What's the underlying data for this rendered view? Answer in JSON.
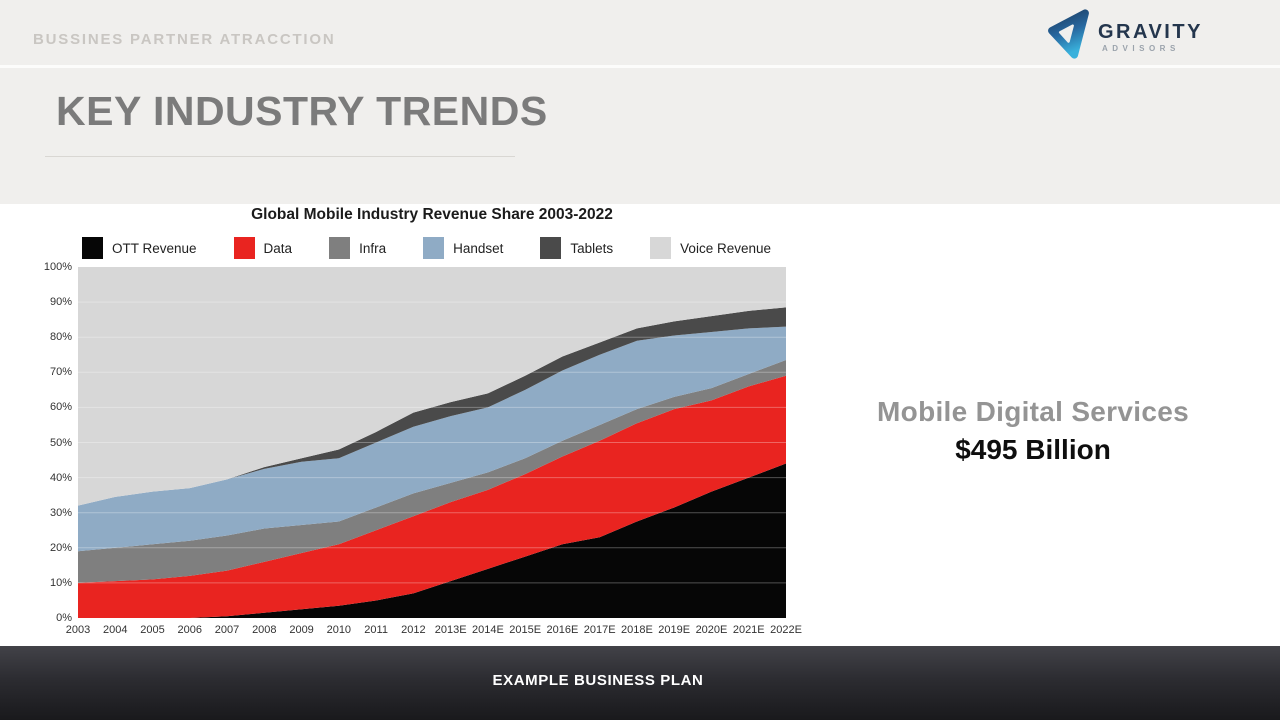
{
  "header": {
    "label": "BUSSINES PARTNER ATRACCTION"
  },
  "logo": {
    "name": "GRAVITY",
    "sub": "ADVISORS",
    "navy": "#24364d",
    "cyan": "#39b1dc"
  },
  "page": {
    "title": "KEY INDUSTRY TRENDS"
  },
  "chart_data": {
    "type": "area",
    "stacked": true,
    "title": "Global Mobile Industry Revenue Share 2003-2022",
    "categories": [
      "2003",
      "2004",
      "2005",
      "2006",
      "2007",
      "2008",
      "2009",
      "2010",
      "2011",
      "2012",
      "2013E",
      "2014E",
      "2015E",
      "2016E",
      "2017E",
      "2018E",
      "2019E",
      "2020E",
      "2021E",
      "2022E"
    ],
    "series": [
      {
        "name": "OTT Revenue",
        "color": "#060606",
        "values": [
          0,
          0,
          0,
          0,
          0.5,
          1.5,
          2.5,
          3.5,
          5,
          7,
          10.5,
          14,
          17.5,
          21,
          23,
          27.5,
          31.5,
          36,
          40,
          44
        ]
      },
      {
        "name": "Data",
        "color": "#e92420",
        "values": [
          10,
          10.5,
          11,
          12,
          13,
          14.5,
          16,
          17.5,
          20,
          22,
          22.5,
          22.5,
          23.5,
          25,
          27.5,
          28,
          28,
          26,
          26,
          25
        ]
      },
      {
        "name": "Infra",
        "color": "#7f7f7f",
        "values": [
          9,
          9.5,
          10,
          10,
          10,
          9.5,
          8,
          6.5,
          6.5,
          6.5,
          5.5,
          5,
          4.5,
          4.5,
          4.5,
          4,
          3.5,
          3.5,
          3.5,
          4.5
        ]
      },
      {
        "name": "Handset",
        "color": "#8fabc5",
        "values": [
          13,
          14.5,
          15,
          15,
          16,
          17,
          18,
          18,
          18.5,
          19,
          19,
          18.5,
          19.5,
          20,
          20,
          19.5,
          17.5,
          16,
          13,
          9.5
        ]
      },
      {
        "name": "Tablets",
        "color": "#4a4a4a",
        "values": [
          0,
          0,
          0,
          0,
          0,
          0.5,
          1,
          2.5,
          3,
          4,
          4,
          4,
          4,
          4,
          3.5,
          3.5,
          4,
          4.5,
          5,
          5.5
        ]
      },
      {
        "name": "Voice Revenue",
        "color": "#d7d7d7",
        "values": [
          68,
          65.5,
          64,
          63,
          60.5,
          57,
          54.5,
          52,
          47,
          41.5,
          38.5,
          36,
          31,
          25.5,
          21.5,
          17.5,
          15.5,
          14,
          12.5,
          11.5
        ]
      }
    ],
    "ylim": [
      0,
      100
    ],
    "yticks": [
      0,
      10,
      20,
      30,
      40,
      50,
      60,
      70,
      80,
      90,
      100
    ],
    "ytick_suffix": "%",
    "grid": "horizontal",
    "legend_position": "top"
  },
  "aside": {
    "line1": "Mobile Digital Services",
    "line2": "$495 Billion"
  },
  "footer": {
    "text": "EXAMPLE BUSINESS PLAN"
  }
}
